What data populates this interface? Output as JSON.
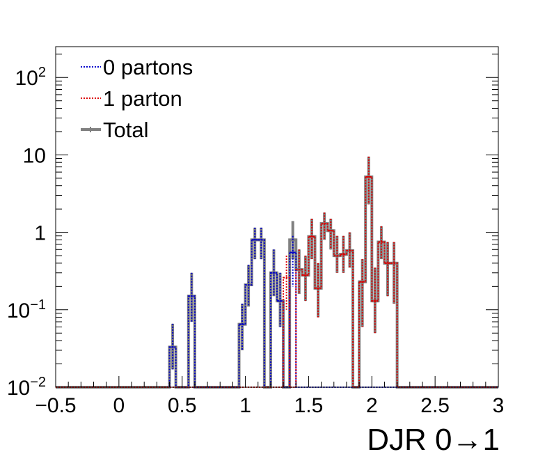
{
  "chart_data": {
    "type": "histogram-step",
    "xlabel": "DJR 0→1",
    "ylabel": "",
    "xlim": [
      -0.5,
      3
    ],
    "ylim": [
      0.01,
      250
    ],
    "y_scale": "log",
    "grid": false,
    "legend_position": "top-left",
    "bin_width": 0.05,
    "x_ticks": [
      {
        "value": -0.5,
        "label": "−0.5"
      },
      {
        "value": 0,
        "label": "0"
      },
      {
        "value": 0.5,
        "label": "0.5"
      },
      {
        "value": 1,
        "label": "1"
      },
      {
        "value": 1.5,
        "label": "1.5"
      },
      {
        "value": 2,
        "label": "2"
      },
      {
        "value": 2.5,
        "label": "2.5"
      },
      {
        "value": 3,
        "label": "3"
      }
    ],
    "y_ticks": [
      {
        "value": 0.01,
        "base": "10",
        "exp": "−2"
      },
      {
        "value": 0.1,
        "base": "10",
        "exp": "−1"
      },
      {
        "value": 1,
        "base": "1",
        "exp": ""
      },
      {
        "value": 10,
        "base": "10",
        "exp": ""
      },
      {
        "value": 100,
        "base": "10",
        "exp": "2"
      }
    ],
    "series": [
      {
        "name": "Total",
        "color": "#808080",
        "style": "solid",
        "bins": [
          {
            "x0": 0.4,
            "x1": 0.45,
            "y": 0.033,
            "err_lo": 0.017,
            "err_hi": 0.066
          },
          {
            "x0": 0.55,
            "x1": 0.6,
            "y": 0.15,
            "err_lo": 0.07,
            "err_hi": 0.3
          },
          {
            "x0": 0.95,
            "x1": 1.0,
            "y": 0.065,
            "err_lo": 0.03,
            "err_hi": 0.12
          },
          {
            "x0": 1.0,
            "x1": 1.05,
            "y": 0.21,
            "err_lo": 0.11,
            "err_hi": 0.38
          },
          {
            "x0": 1.05,
            "x1": 1.1,
            "y": 0.8,
            "err_lo": 0.45,
            "err_hi": 1.15
          },
          {
            "x0": 1.1,
            "x1": 1.15,
            "y": 0.8,
            "err_lo": 0.45,
            "err_hi": 1.15
          },
          {
            "x0": 1.2,
            "x1": 1.25,
            "y": 0.3,
            "err_lo": 0.15,
            "err_hi": 0.6
          },
          {
            "x0": 1.25,
            "x1": 1.3,
            "y": 0.13,
            "err_lo": 0.06,
            "err_hi": 0.3
          },
          {
            "x0": 1.35,
            "x1": 1.4,
            "y": 0.8,
            "err_lo": 0.45,
            "err_hi": 1.4
          },
          {
            "x0": 1.4,
            "x1": 1.45,
            "y": 0.33,
            "err_lo": 0.16,
            "err_hi": 0.6
          },
          {
            "x0": 1.45,
            "x1": 1.5,
            "y": 0.28,
            "err_lo": 0.13,
            "err_hi": 0.5
          },
          {
            "x0": 1.5,
            "x1": 1.55,
            "y": 0.88,
            "err_lo": 0.45,
            "err_hi": 1.5
          },
          {
            "x0": 1.55,
            "x1": 1.6,
            "y": 0.19,
            "err_lo": 0.08,
            "err_hi": 0.4
          },
          {
            "x0": 1.6,
            "x1": 1.65,
            "y": 1.3,
            "err_lo": 0.8,
            "err_hi": 1.8
          },
          {
            "x0": 1.65,
            "x1": 1.7,
            "y": 1.05,
            "err_lo": 0.6,
            "err_hi": 1.5
          },
          {
            "x0": 1.7,
            "x1": 1.75,
            "y": 0.5,
            "err_lo": 0.3,
            "err_hi": 0.9
          },
          {
            "x0": 1.75,
            "x1": 1.8,
            "y": 0.52,
            "err_lo": 0.3,
            "err_hi": 0.9
          },
          {
            "x0": 1.8,
            "x1": 1.85,
            "y": 0.58,
            "err_lo": 0.35,
            "err_hi": 1.0
          },
          {
            "x0": 1.9,
            "x1": 1.95,
            "y": 0.23,
            "err_lo": 0.06,
            "err_hi": 0.45
          },
          {
            "x0": 1.95,
            "x1": 2.0,
            "y": 5.2,
            "err_lo": 2.3,
            "err_hi": 9.5
          },
          {
            "x0": 2.0,
            "x1": 2.05,
            "y": 0.13,
            "err_lo": 0.05,
            "err_hi": 0.35
          },
          {
            "x0": 2.05,
            "x1": 2.1,
            "y": 0.75,
            "err_lo": 0.45,
            "err_hi": 1.2
          },
          {
            "x0": 2.1,
            "x1": 2.15,
            "y": 0.4,
            "err_lo": 0.15,
            "err_hi": 0.75
          },
          {
            "x0": 2.15,
            "x1": 2.2,
            "y": 0.4,
            "err_lo": 0.12,
            "err_hi": 0.75
          }
        ]
      },
      {
        "name": "0 partons",
        "color": "#0000cc",
        "style": "dotted",
        "bins": [
          {
            "x0": 0.4,
            "x1": 0.45,
            "y": 0.033,
            "err_lo": 0.017,
            "err_hi": 0.066
          },
          {
            "x0": 0.55,
            "x1": 0.6,
            "y": 0.15,
            "err_lo": 0.07,
            "err_hi": 0.3
          },
          {
            "x0": 0.95,
            "x1": 1.0,
            "y": 0.065,
            "err_lo": 0.03,
            "err_hi": 0.12
          },
          {
            "x0": 1.0,
            "x1": 1.05,
            "y": 0.21,
            "err_lo": 0.11,
            "err_hi": 0.38
          },
          {
            "x0": 1.05,
            "x1": 1.1,
            "y": 0.8,
            "err_lo": 0.45,
            "err_hi": 1.15
          },
          {
            "x0": 1.1,
            "x1": 1.15,
            "y": 0.8,
            "err_lo": 0.45,
            "err_hi": 1.15
          },
          {
            "x0": 1.2,
            "x1": 1.25,
            "y": 0.3,
            "err_lo": 0.15,
            "err_hi": 0.6
          },
          {
            "x0": 1.25,
            "x1": 1.3,
            "y": 0.13,
            "err_lo": 0.06,
            "err_hi": 0.3
          },
          {
            "x0": 1.35,
            "x1": 1.4,
            "y": 0.55,
            "err_lo": 0.2,
            "err_hi": 0.9
          }
        ]
      },
      {
        "name": "1 parton",
        "color": "#dd0000",
        "style": "dotted",
        "bins": [
          {
            "x0": 1.3,
            "x1": 1.35,
            "y": 0.26,
            "err_lo": 0.1,
            "err_hi": 0.5
          },
          {
            "x0": 1.4,
            "x1": 1.45,
            "y": 0.33,
            "err_lo": 0.16,
            "err_hi": 0.6
          },
          {
            "x0": 1.45,
            "x1": 1.5,
            "y": 0.28,
            "err_lo": 0.13,
            "err_hi": 0.5
          },
          {
            "x0": 1.5,
            "x1": 1.55,
            "y": 0.88,
            "err_lo": 0.45,
            "err_hi": 1.5
          },
          {
            "x0": 1.55,
            "x1": 1.6,
            "y": 0.19,
            "err_lo": 0.08,
            "err_hi": 0.4
          },
          {
            "x0": 1.6,
            "x1": 1.65,
            "y": 1.3,
            "err_lo": 0.8,
            "err_hi": 1.8
          },
          {
            "x0": 1.65,
            "x1": 1.7,
            "y": 1.05,
            "err_lo": 0.6,
            "err_hi": 1.5
          },
          {
            "x0": 1.7,
            "x1": 1.75,
            "y": 0.5,
            "err_lo": 0.3,
            "err_hi": 0.9
          },
          {
            "x0": 1.75,
            "x1": 1.8,
            "y": 0.52,
            "err_lo": 0.3,
            "err_hi": 0.9
          },
          {
            "x0": 1.8,
            "x1": 1.85,
            "y": 0.58,
            "err_lo": 0.35,
            "err_hi": 1.0
          },
          {
            "x0": 1.9,
            "x1": 1.95,
            "y": 0.23,
            "err_lo": 0.06,
            "err_hi": 0.45
          },
          {
            "x0": 1.95,
            "x1": 2.0,
            "y": 5.2,
            "err_lo": 2.3,
            "err_hi": 9.5
          },
          {
            "x0": 2.0,
            "x1": 2.05,
            "y": 0.13,
            "err_lo": 0.05,
            "err_hi": 0.35
          },
          {
            "x0": 2.05,
            "x1": 2.1,
            "y": 0.75,
            "err_lo": 0.45,
            "err_hi": 1.2
          },
          {
            "x0": 2.1,
            "x1": 2.15,
            "y": 0.4,
            "err_lo": 0.15,
            "err_hi": 0.75
          },
          {
            "x0": 2.15,
            "x1": 2.2,
            "y": 0.4,
            "err_lo": 0.12,
            "err_hi": 0.75
          }
        ]
      }
    ],
    "legend": [
      {
        "label": "0 partons",
        "color": "#0000cc",
        "style": "dotted"
      },
      {
        "label": "1 parton",
        "color": "#dd0000",
        "style": "dotted"
      },
      {
        "label": "Total",
        "color": "#808080",
        "style": "solid"
      }
    ]
  }
}
